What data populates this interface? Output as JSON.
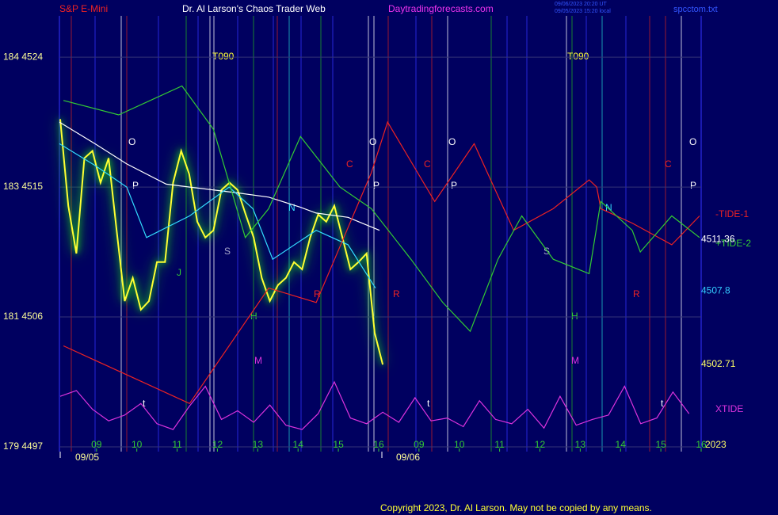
{
  "chart_data": {
    "type": "line",
    "title": "Dr. Al Larson's Chaos Trader Web",
    "instrument": "S&P E-Mini",
    "website": "Daytradingforecasts.com",
    "timestamps": [
      "09/06/2023 20:20 UT",
      "09/05/2023 15:20 local"
    ],
    "file_name": "spcctom.txt",
    "copyright": "Copyright 2023, Dr. Al Larson. May not be copied by any means.",
    "year_label": "2023",
    "date_labels": [
      "09/05",
      "09/06"
    ],
    "ylim": [
      4496.67,
      4526.86
    ],
    "yticks": [
      {
        "value": 4497,
        "label": "179 4497"
      },
      {
        "value": 4506,
        "label": "181 4506"
      },
      {
        "value": 4515,
        "label": "183 4515"
      },
      {
        "value": 4524,
        "label": "184 4524"
      }
    ],
    "xlim": [
      8.08,
      24.0
    ],
    "xticks": [
      {
        "value": 9,
        "label": "09"
      },
      10,
      11,
      12,
      13,
      14,
      15,
      16,
      {
        "value": 17,
        "label": "09"
      },
      {
        "value": 18,
        "label": "10"
      },
      {
        "value": 19,
        "label": "11"
      },
      {
        "value": 20,
        "label": "12"
      },
      {
        "value": 21,
        "label": "13"
      },
      {
        "value": 22,
        "label": "14"
      },
      {
        "value": 23,
        "label": "15"
      },
      {
        "value": 24,
        "label": "16"
      }
    ],
    "grid": true,
    "series": [
      {
        "color": "#ffff33",
        "glow": true,
        "x": [
          8.1,
          8.3,
          8.5,
          8.7,
          8.9,
          9.1,
          9.3,
          9.5,
          9.7,
          9.9,
          10.1,
          10.3,
          10.5,
          10.7,
          10.9,
          11.1,
          11.3,
          11.5,
          11.7,
          11.9,
          12.1,
          12.3,
          12.5,
          12.7,
          12.9,
          13.1,
          13.3,
          13.5,
          13.7,
          13.9,
          14.1,
          14.3,
          14.5,
          14.7,
          14.9,
          15.1,
          15.3,
          15.5,
          15.7,
          15.9,
          16.1
        ],
        "values": [
          4519.7,
          4513.7,
          4510.4,
          4517.0,
          4517.5,
          4515.3,
          4517.0,
          4512.0,
          4507.1,
          4508.7,
          4506.5,
          4507.1,
          4509.8,
          4509.8,
          4515.3,
          4517.5,
          4515.9,
          4512.6,
          4511.5,
          4512.0,
          4514.8,
          4515.3,
          4514.8,
          4513.1,
          4511.5,
          4508.7,
          4507.1,
          4508.2,
          4508.7,
          4509.8,
          4509.3,
          4511.5,
          4513.1,
          4512.6,
          4513.7,
          4511.5,
          4509.3,
          4509.8,
          4510.4,
          4504.9,
          4502.7
        ]
      },
      {
        "color": "#ffffff",
        "x": [
          8.08,
          8.96,
          9.75,
          10.73,
          11.31,
          12.49,
          13.27,
          14.06,
          14.45,
          15.24,
          16.02
        ],
        "values": [
          4519.5,
          4518.0,
          4516.6,
          4515.2,
          4515.0,
          4514.6,
          4514.3,
          4513.6,
          4513.2,
          4512.9,
          4512.0
        ]
      },
      {
        "color": "#33ddff",
        "x": [
          8.08,
          8.96,
          9.75,
          10.24,
          11.31,
          12.29,
          12.88,
          13.37,
          14.45,
          15.24,
          15.92
        ],
        "values": [
          4518.0,
          4516.5,
          4515.0,
          4511.5,
          4513.0,
          4515.0,
          4513.5,
          4510.0,
          4512.0,
          4511.0,
          4508.0
        ]
      },
      {
        "name": "-TIDE-1",
        "color": "#ee2222",
        "x": [
          8.18,
          11.31,
          13.27,
          14.45,
          15.82,
          16.22,
          17.39,
          18.37,
          19.35,
          20.33,
          21.22,
          21.41,
          21.51,
          22.29,
          23.27,
          23.96
        ],
        "values": [
          4504.0,
          4500.0,
          4508.0,
          4507.0,
          4516.0,
          4519.5,
          4514.0,
          4518.0,
          4512.0,
          4513.5,
          4515.5,
          4515.0,
          4513.5,
          4512.5,
          4511.0,
          4513.0
        ]
      },
      {
        "name": "+TIDE-2",
        "color": "#33cc33",
        "x": [
          8.18,
          9.55,
          11.12,
          11.9,
          12.69,
          13.27,
          14.06,
          15.04,
          15.82,
          16.8,
          17.59,
          18.27,
          18.96,
          19.55,
          20.33,
          21.22,
          21.51,
          22.29,
          22.49,
          23.27,
          23.96
        ],
        "values": [
          4521.0,
          4520.0,
          4522.0,
          4519.0,
          4511.5,
          4513.5,
          4518.5,
          4515.0,
          4513.5,
          4510.0,
          4507.0,
          4505.0,
          4510.0,
          4513.0,
          4510.0,
          4509.0,
          4514.0,
          4512.0,
          4510.5,
          4513.0,
          4511.5
        ]
      },
      {
        "name": "XTIDE",
        "color": "#dd33dd",
        "x": [
          8.1,
          8.5,
          8.9,
          9.3,
          9.7,
          10.1,
          10.5,
          10.9,
          11.3,
          11.7,
          12.1,
          12.5,
          12.9,
          13.3,
          13.7,
          14.1,
          14.5,
          14.9,
          15.3,
          15.7,
          16.1,
          16.5,
          16.9,
          17.3,
          17.7,
          18.1,
          18.5,
          18.9,
          19.3,
          19.7,
          20.1,
          20.5,
          20.9,
          21.3,
          21.7,
          22.1,
          22.5,
          22.9,
          23.3,
          23.7
        ],
        "values": [
          4500.5,
          4500.9,
          4499.6,
          4498.8,
          4499.2,
          4500.0,
          4498.6,
          4498.2,
          4499.8,
          4501.2,
          4498.9,
          4499.5,
          4498.7,
          4499.9,
          4498.5,
          4498.2,
          4499.3,
          4501.5,
          4499.0,
          4498.6,
          4499.4,
          4498.7,
          4500.4,
          4498.8,
          4499.0,
          4498.4,
          4500.2,
          4498.9,
          4498.6,
          4499.6,
          4498.3,
          4500.5,
          4498.5,
          4498.9,
          4499.2,
          4501.2,
          4498.6,
          4499.0,
          4500.8,
          4499.3
        ]
      }
    ],
    "right_labels": [
      {
        "value": 4511.36,
        "color": "#ffffff"
      },
      {
        "value": 4507.8,
        "color": "#33ccff"
      },
      {
        "value": 4502.71,
        "color": "#ffff66"
      }
    ],
    "annotations": [
      "T090",
      "T090",
      "O",
      "O",
      "O",
      "O",
      "P",
      "P",
      "P",
      "P",
      "C",
      "C",
      "C",
      "N",
      "N",
      "S",
      "S",
      "R",
      "R",
      "R",
      "H",
      "H",
      "M",
      "M",
      "J",
      "t",
      "t",
      "t"
    ]
  }
}
